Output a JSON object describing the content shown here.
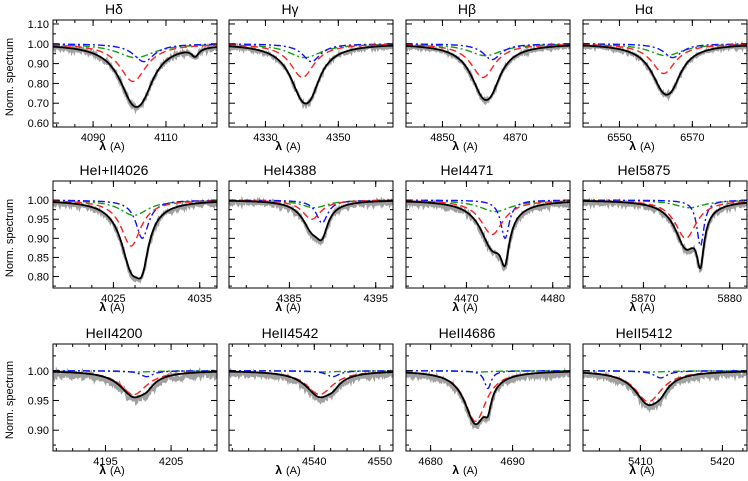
{
  "figure": {
    "ylabel": "Norm. spectrum",
    "xlabel_symbol": "λ",
    "xlabel_unit": "(A)"
  },
  "colors": {
    "observed": "#a0a0a0",
    "model": "#000000",
    "component_red": "#ff2020",
    "component_green": "#10a010",
    "component_blue": "#1010ff"
  },
  "chart_data": [
    {
      "type": "line",
      "title": "Hδ",
      "xlim": [
        4079,
        4124
      ],
      "xticks": [
        4090,
        4110
      ],
      "ylim": [
        0.58,
        1.12
      ],
      "yticks": [
        0.6,
        0.7,
        0.8,
        0.9,
        1.0,
        1.1
      ],
      "ytick_labels": [
        "0.60",
        "0.70",
        "0.80",
        "0.90",
        "1.00",
        "1.10"
      ],
      "lines": {
        "center": 4102,
        "d1": 0.07,
        "d2": 0.19,
        "d3": 0.09,
        "w": 4.5,
        "w3": 3.5,
        "s": 3,
        "extra": [
          {
            "c": 4118,
            "d": 0.04,
            "w": 1.2
          }
        ],
        "noise": 0.012
      }
    },
    {
      "type": "line",
      "title": "Hγ",
      "xlim": [
        4320,
        4365
      ],
      "xticks": [
        4330,
        4350
      ],
      "ylim": [
        0.58,
        1.12
      ],
      "yticks": [
        0.6,
        0.7,
        0.8,
        0.9,
        1.0,
        1.1
      ],
      "ytick_labels": [],
      "lines": {
        "center": 4341,
        "d1": 0.07,
        "d2": 0.17,
        "d3": 0.09,
        "w": 4,
        "w3": 3,
        "s": 2.5,
        "noise": 0.008
      }
    },
    {
      "type": "line",
      "title": "Hβ",
      "xlim": [
        4840,
        4885
      ],
      "xticks": [
        4850,
        4870
      ],
      "ylim": [
        0.58,
        1.12
      ],
      "yticks": [
        0.6,
        0.7,
        0.8,
        0.9,
        1.0,
        1.1
      ],
      "ytick_labels": [],
      "lines": {
        "center": 4862,
        "d1": 0.06,
        "d2": 0.17,
        "d3": 0.08,
        "w": 4,
        "w3": 3,
        "s": 2.5,
        "noise": 0.007
      }
    },
    {
      "type": "line",
      "title": "Hα",
      "xlim": [
        6540,
        6585
      ],
      "xticks": [
        6550,
        6570
      ],
      "ylim": [
        0.58,
        1.12
      ],
      "yticks": [
        0.6,
        0.7,
        0.8,
        0.9,
        1.0,
        1.1
      ],
      "ytick_labels": [],
      "lines": {
        "center": 6563,
        "d1": 0.06,
        "d2": 0.15,
        "d3": 0.07,
        "w": 4,
        "w3": 3,
        "s": 2.5,
        "noise": 0.007
      }
    },
    {
      "type": "line",
      "title": "HeI+II4026",
      "xlim": [
        4018,
        4037
      ],
      "xticks": [
        4025,
        4035
      ],
      "ylim": [
        0.77,
        1.05
      ],
      "yticks": [
        0.8,
        0.85,
        0.9,
        0.95,
        1.0
      ],
      "ytick_labels": [
        "0.80",
        "0.85",
        "0.90",
        "0.95",
        "1.00"
      ],
      "lines": {
        "center": 4027.5,
        "d1": 0.04,
        "d2": 0.12,
        "d3": 0.1,
        "w": 1.4,
        "w3": 0.9,
        "s": 1.3,
        "noise": 0.006
      }
    },
    {
      "type": "line",
      "title": "HeI4388",
      "xlim": [
        4378,
        4397
      ],
      "xticks": [
        4385,
        4395
      ],
      "ylim": [
        0.77,
        1.05
      ],
      "yticks": [
        0.8,
        0.85,
        0.9,
        0.95,
        1.0
      ],
      "ytick_labels": [],
      "lines": {
        "center": 4388,
        "d1": 0.02,
        "d2": 0.05,
        "d3": 0.06,
        "w": 1.3,
        "w3": 0.8,
        "s": 1.2,
        "noise": 0.006
      }
    },
    {
      "type": "line",
      "title": "HeI4471",
      "xlim": [
        4463,
        4482
      ],
      "xticks": [
        4470,
        4480
      ],
      "ylim": [
        0.77,
        1.05
      ],
      "yticks": [
        0.8,
        0.85,
        0.9,
        0.95,
        1.0
      ],
      "ytick_labels": [],
      "lines": {
        "center": 4473.5,
        "d1": 0.03,
        "d2": 0.09,
        "d3": 0.1,
        "w": 1.6,
        "w3": 0.6,
        "s": 1.5,
        "noise": 0.007
      }
    },
    {
      "type": "line",
      "title": "HeI5875",
      "xlim": [
        5863,
        5882
      ],
      "xticks": [
        5870,
        5880
      ],
      "ylim": [
        0.77,
        1.05
      ],
      "yticks": [
        0.8,
        0.85,
        0.9,
        0.95,
        1.0
      ],
      "ytick_labels": [],
      "lines": {
        "center": 5875.5,
        "d1": 0.02,
        "d2": 0.1,
        "d3": 0.12,
        "w": 1.5,
        "w3": 0.5,
        "s": 1.7,
        "noise": 0.006
      }
    },
    {
      "type": "line",
      "title": "HeII4200",
      "xlim": [
        4187,
        4212
      ],
      "xticks": [
        4195,
        4205
      ],
      "ylim": [
        0.865,
        1.045
      ],
      "yticks": [
        0.9,
        0.95,
        1.0
      ],
      "ytick_labels": [
        "0.90",
        "0.95",
        "1.00"
      ],
      "lines": {
        "center": 4200,
        "d1": 0.002,
        "d2": 0.04,
        "d3": 0.01,
        "w": 2.5,
        "w3": 1.2,
        "s": 2,
        "noise": 0.007
      }
    },
    {
      "type": "line",
      "title": "HeII4542",
      "xlim": [
        4527,
        4552
      ],
      "xticks": [
        4540,
        4550
      ],
      "ylim": [
        0.865,
        1.045
      ],
      "yticks": [
        0.9,
        0.95,
        1.0
      ],
      "ytick_labels": [],
      "lines": {
        "center": 4541.5,
        "d1": 0.002,
        "d2": 0.04,
        "d3": 0.01,
        "w": 2.5,
        "w3": 1.2,
        "s": 2,
        "noise": 0.004
      }
    },
    {
      "type": "line",
      "title": "HeII4686",
      "xlim": [
        4677,
        4697
      ],
      "xticks": [
        4680,
        4690
      ],
      "ylim": [
        0.865,
        1.045
      ],
      "yticks": [
        0.9,
        0.95,
        1.0
      ],
      "ytick_labels": [],
      "lines": {
        "center": 4686,
        "d1": 0.002,
        "d2": 0.085,
        "d3": 0.03,
        "w": 1.6,
        "w3": 0.5,
        "s": 1.5,
        "noise": 0.004
      }
    },
    {
      "type": "line",
      "title": "HeII5412",
      "xlim": [
        5403,
        5423
      ],
      "xticks": [
        5410,
        5420
      ],
      "ylim": [
        0.865,
        1.045
      ],
      "yticks": [
        0.9,
        0.95,
        1.0
      ],
      "ytick_labels": [],
      "lines": {
        "center": 5411.5,
        "d1": 0.002,
        "d2": 0.052,
        "d3": 0.012,
        "w": 2,
        "w3": 1,
        "s": 1.5,
        "noise": 0.004
      }
    }
  ]
}
